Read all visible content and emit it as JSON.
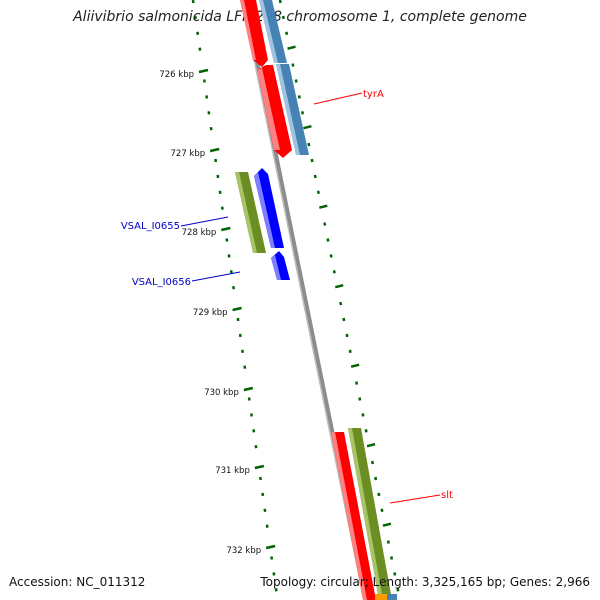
{
  "title": "Aliivibrio salmonicida LFI1238 chromosome 1, complete genome",
  "footer": {
    "accession": "Accession: NC_011312",
    "summary": "Topology: circular; Length: 3,325,165 bp; Genes: 2,966"
  },
  "ruler": {
    "unit": "kbp",
    "ticks": [
      "726 kbp",
      "727 kbp",
      "728 kbp",
      "729 kbp",
      "730 kbp",
      "731 kbp",
      "732 kbp"
    ]
  },
  "features": [
    {
      "label": "tyrA",
      "color": "#ff0000"
    },
    {
      "label": "VSAL_I0655",
      "color": "#0000cc"
    },
    {
      "label": "VSAL_I0656",
      "color": "#0000cc"
    },
    {
      "label": "slt",
      "color": "#ff0000"
    }
  ],
  "colors": {
    "backbone": "#8c8c8c",
    "cds_red": "#ff0000",
    "cds_blue": "#0000ff",
    "cds_steelblue": "#4682b4",
    "cds_olive": "#6b8e23",
    "cds_orange": "#ff9900",
    "tick_green": "#006400"
  }
}
